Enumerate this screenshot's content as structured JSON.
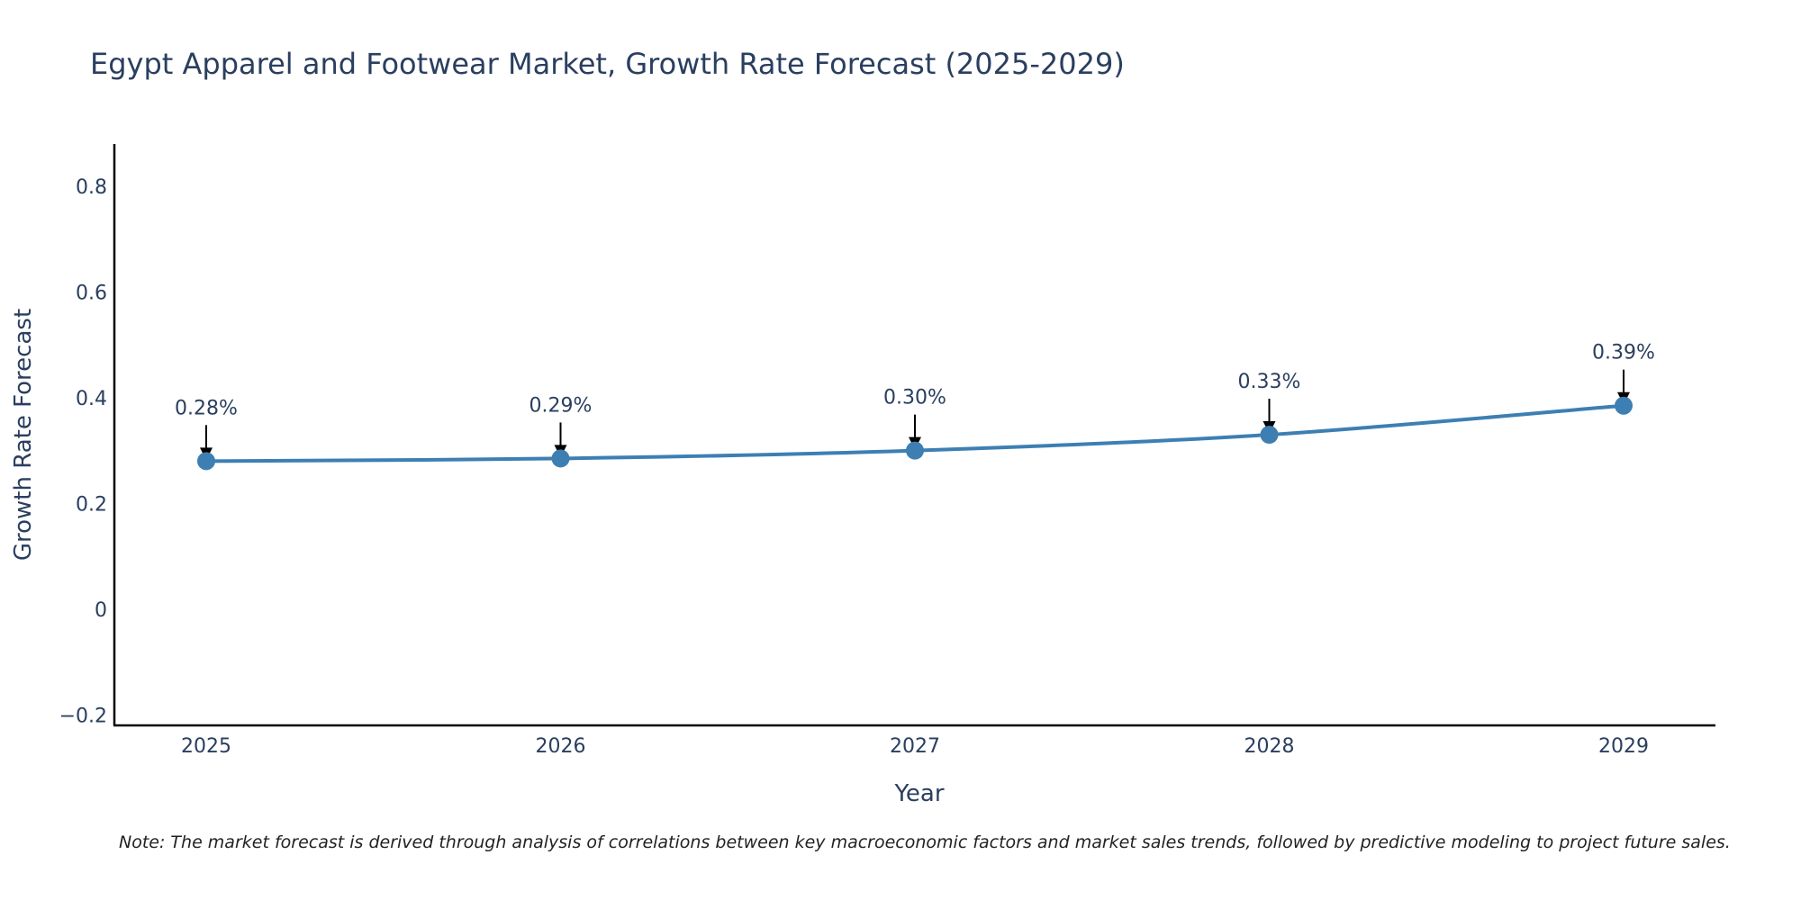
{
  "chart_data": {
    "type": "line",
    "title": "Egypt Apparel and Footwear Market, Growth Rate Forecast (2025-2029)",
    "xlabel": "Year",
    "ylabel": "Growth Rate Forecast",
    "categories": [
      "2025",
      "2026",
      "2027",
      "2028",
      "2029"
    ],
    "values": [
      0.28,
      0.285,
      0.3,
      0.33,
      0.385
    ],
    "labels": [
      "0.28%",
      "0.29%",
      "0.30%",
      "0.33%",
      "0.39%"
    ],
    "ylim": [
      -0.22,
      0.88
    ],
    "yticks": [
      -0.2,
      0,
      0.2,
      0.4,
      0.6,
      0.8
    ],
    "ytick_labels": [
      "−0.2",
      "0",
      "0.2",
      "0.4",
      "0.6",
      "0.8"
    ],
    "line_color": "#3d7fb3",
    "grid": false,
    "note": "Note: The market forecast is derived through analysis of correlations between key macroeconomic factors and market sales trends, followed by predictive modeling to project future sales."
  }
}
